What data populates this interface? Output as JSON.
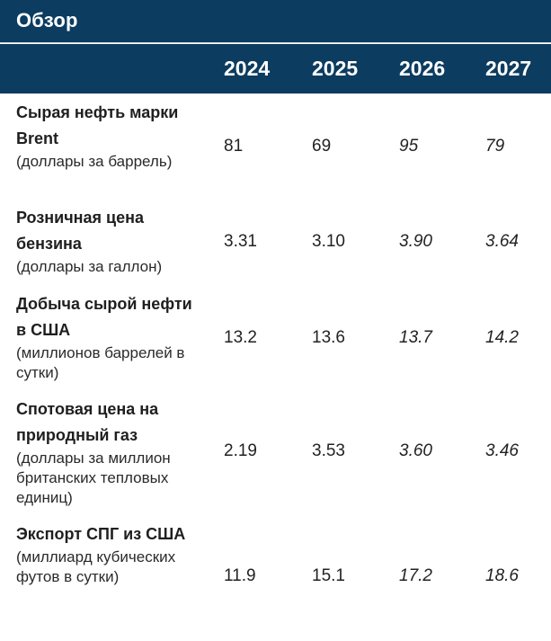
{
  "title": "Обзор",
  "years": [
    "2024",
    "2025",
    "2026",
    "2027"
  ],
  "rows": [
    {
      "name": "Сырая нефть марки Brent",
      "unit": "(доллары за баррель)",
      "values": [
        "81",
        "69",
        "95",
        "79"
      ]
    },
    {
      "name": "Розничная цена бензина",
      "unit": "(доллары за галлон)",
      "values": [
        "3.31",
        "3.10",
        "3.90",
        "3.64"
      ]
    },
    {
      "name": "Добыча сырой нефти в США",
      "unit": "(миллионов баррелей в сутки)",
      "values": [
        "13.2",
        "13.6",
        "13.7",
        "14.2"
      ]
    },
    {
      "name": "Спотовая цена на природный газ",
      "unit": "(доллары за миллион британских тепловых единиц)",
      "values": [
        "2.19",
        "3.53",
        "3.60",
        "3.46"
      ]
    },
    {
      "name": "Экспорт СПГ из США",
      "unit": "(миллиард кубических футов в сутки)",
      "values": [
        "11.9",
        "15.1",
        "17.2",
        "18.6"
      ]
    }
  ]
}
